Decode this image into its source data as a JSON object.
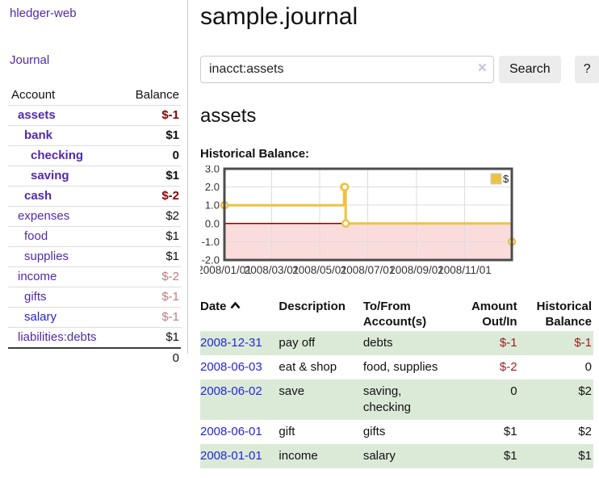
{
  "app": {
    "title": "hledger-web",
    "nav": {
      "journal": "Journal"
    }
  },
  "sidebar": {
    "header": {
      "account": "Account",
      "balance": "Balance"
    },
    "accounts": [
      {
        "name": "assets",
        "balance": "$-1",
        "level": 0,
        "in_query": true,
        "negative": "strong",
        "link_color": "purple"
      },
      {
        "name": "bank",
        "balance": "$1",
        "level": 1,
        "in_query": true,
        "negative": null,
        "link_color": "purple"
      },
      {
        "name": "checking",
        "balance": "0",
        "level": 2,
        "in_query": true,
        "negative": null,
        "link_color": "purple"
      },
      {
        "name": "saving",
        "balance": "$1",
        "level": 2,
        "in_query": true,
        "negative": null,
        "link_color": "purple"
      },
      {
        "name": "cash",
        "balance": "$-2",
        "level": 1,
        "in_query": true,
        "negative": "strong",
        "link_color": "purple"
      },
      {
        "name": "expenses",
        "balance": "$2",
        "level": 0,
        "in_query": false,
        "negative": null,
        "link_color": "purple"
      },
      {
        "name": "food",
        "balance": "$1",
        "level": 1,
        "in_query": false,
        "negative": null,
        "link_color": "purple"
      },
      {
        "name": "supplies",
        "balance": "$1",
        "level": 1,
        "in_query": false,
        "negative": null,
        "link_color": "purple"
      },
      {
        "name": "income",
        "balance": "$-2",
        "level": 0,
        "in_query": false,
        "negative": "soft",
        "link_color": "purple"
      },
      {
        "name": "gifts",
        "balance": "$-1",
        "level": 1,
        "in_query": false,
        "negative": "soft",
        "link_color": "purple"
      },
      {
        "name": "salary",
        "balance": "$-1",
        "level": 1,
        "in_query": false,
        "negative": "soft",
        "link_color": "blue"
      },
      {
        "name": "liabilities:debts",
        "balance": "$1",
        "level": 0,
        "in_query": false,
        "negative": null,
        "link_color": "purple"
      }
    ],
    "total": "0"
  },
  "main": {
    "title": "sample.journal",
    "search": {
      "value": "inacct:assets",
      "clear_icon": "×",
      "search_button": "Search",
      "help_button": "?"
    },
    "account_heading": "assets"
  },
  "chart_data": {
    "type": "line",
    "step": true,
    "title": "Historical Balance:",
    "x_range": [
      "2008-01-01",
      "2008-12-31"
    ],
    "ylim": [
      -2,
      3
    ],
    "y_ticks": [
      {
        "value": 3,
        "label": "3.0"
      },
      {
        "value": 2,
        "label": "2.0"
      },
      {
        "value": 1,
        "label": "1.0"
      },
      {
        "value": 0,
        "label": "0.0"
      },
      {
        "value": -1,
        "label": "-1.0"
      },
      {
        "value": -2,
        "label": "-2.0"
      }
    ],
    "x_ticks": [
      {
        "date": "2008-01-01",
        "label": "2008/01/01"
      },
      {
        "date": "2008-03-01",
        "label": "2008/03/01"
      },
      {
        "date": "2008-05-01",
        "label": "2008/05/01"
      },
      {
        "date": "2008-07-01",
        "label": "2008/07/01"
      },
      {
        "date": "2008-09-01",
        "label": "2008/09/01"
      },
      {
        "date": "2008-11-01",
        "label": "2008/11/01"
      }
    ],
    "legend": {
      "label": "$",
      "position": "top-right"
    },
    "series": [
      {
        "name": "$",
        "color": "#edc240",
        "points": [
          [
            "2008-01-01",
            1
          ],
          [
            "2008-06-01",
            2
          ],
          [
            "2008-06-02",
            2
          ],
          [
            "2008-06-03",
            0
          ],
          [
            "2008-12-31",
            -1
          ]
        ]
      }
    ]
  },
  "register": {
    "headers": {
      "date": "Date",
      "description": "Description",
      "account": "To/From Account(s)",
      "amount": "Amount Out/In",
      "balance": "Historical Balance"
    },
    "rows": [
      {
        "date": "2008-12-31",
        "description": "pay off",
        "accounts": "debts",
        "amount": "$-1",
        "amount_negative": true,
        "balance": "$-1",
        "balance_negative": true
      },
      {
        "date": "2008-06-03",
        "description": "eat & shop",
        "accounts": "food, supplies",
        "amount": "$-2",
        "amount_negative": true,
        "balance": "0",
        "balance_negative": false
      },
      {
        "date": "2008-06-02",
        "description": "save",
        "accounts": "saving, checking",
        "amount": "0",
        "amount_negative": false,
        "balance": "$2",
        "balance_negative": false
      },
      {
        "date": "2008-06-01",
        "description": "gift",
        "accounts": "gifts",
        "amount": "$1",
        "amount_negative": false,
        "balance": "$2",
        "balance_negative": false
      },
      {
        "date": "2008-01-01",
        "description": "income",
        "accounts": "salary",
        "amount": "$1",
        "amount_negative": false,
        "balance": "$1",
        "balance_negative": false
      }
    ]
  },
  "colors": {
    "link-purple": "#5229ad",
    "link-blue": "#2525dd",
    "neg-strong": "#8b0000",
    "neg-soft": "#bd7d7d",
    "neg-table": "#9c1c1c",
    "row-green": "#dbead7",
    "btn-bg": "#ececec",
    "chart-negative-region": "#fbdcdc",
    "chart-zero-line": "#8b0000",
    "chart-grid": "#dddddd",
    "chart-border": "#4c4c4c"
  }
}
